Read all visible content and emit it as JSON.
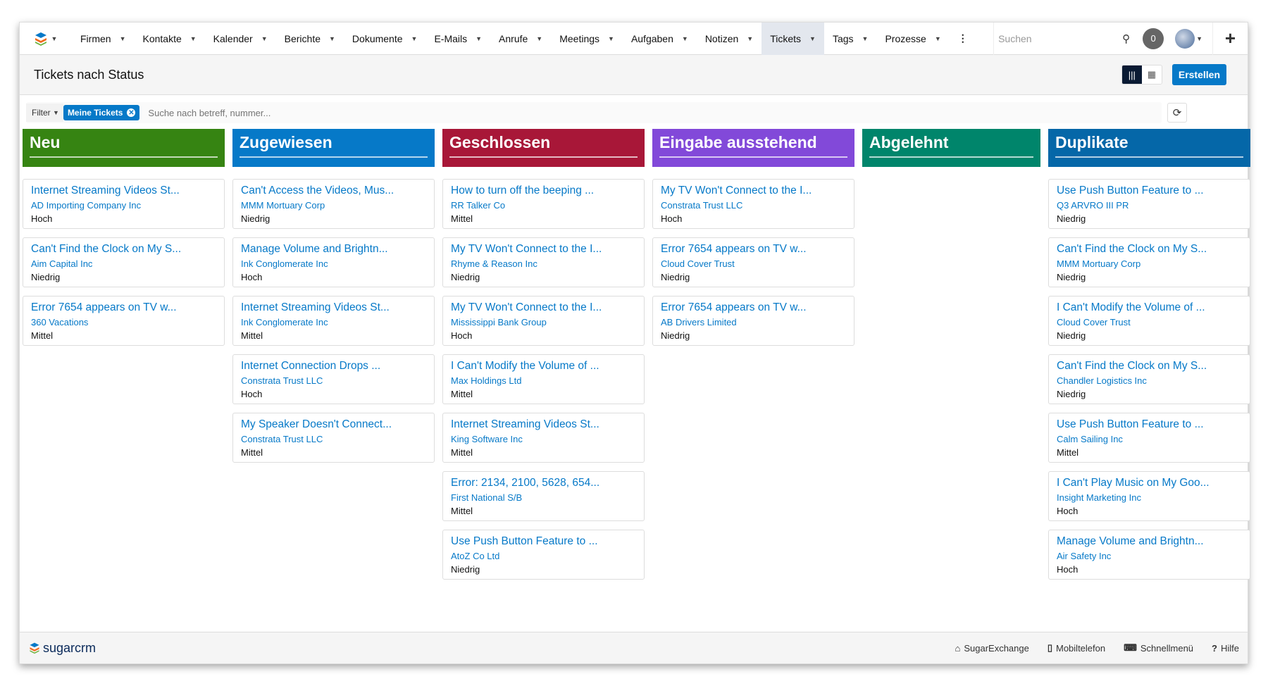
{
  "nav": {
    "items": [
      "Firmen",
      "Kontakte",
      "Kalender",
      "Berichte",
      "Dokumente",
      "E-Mails",
      "Anrufe",
      "Meetings",
      "Aufgaben",
      "Notizen",
      "Tickets",
      "Tags",
      "Prozesse"
    ],
    "active": "Tickets",
    "search_placeholder": "Suchen",
    "notifications": "0"
  },
  "header": {
    "title": "Tickets nach Status",
    "create_label": "Erstellen"
  },
  "filter": {
    "label": "Filter",
    "pill": "Meine Tickets",
    "placeholder": "Suche nach betreff, nummer..."
  },
  "columns": [
    {
      "title": "Neu",
      "color": "#368412",
      "cards": [
        {
          "t": "Internet Streaming Videos St...",
          "a": "AD Importing Company Inc",
          "p": "Hoch"
        },
        {
          "t": "Can't Find the Clock on My S...",
          "a": "Aim Capital Inc",
          "p": "Niedrig"
        },
        {
          "t": "Error 7654 appears on TV w...",
          "a": "360 Vacations",
          "p": "Mittel"
        }
      ]
    },
    {
      "title": "Zugewiesen",
      "color": "#0679c8",
      "cards": [
        {
          "t": "Can't Access the Videos, Mus...",
          "a": "MMM Mortuary Corp",
          "p": "Niedrig"
        },
        {
          "t": "Manage Volume and Brightn...",
          "a": "Ink Conglomerate Inc",
          "p": "Hoch"
        },
        {
          "t": "Internet Streaming Videos St...",
          "a": "Ink Conglomerate Inc",
          "p": "Mittel"
        },
        {
          "t": "Internet Connection Drops ...",
          "a": "Constrata Trust LLC",
          "p": "Hoch"
        },
        {
          "t": "My Speaker Doesn't Connect...",
          "a": "Constrata Trust LLC",
          "p": "Mittel"
        }
      ]
    },
    {
      "title": "Geschlossen",
      "color": "#a81738",
      "cards": [
        {
          "t": "How to turn off the beeping ...",
          "a": "RR Talker Co",
          "p": "Mittel"
        },
        {
          "t": "My TV Won't Connect to the I...",
          "a": "Rhyme & Reason Inc",
          "p": "Niedrig"
        },
        {
          "t": "My TV Won't Connect to the I...",
          "a": "Mississippi Bank Group",
          "p": "Hoch"
        },
        {
          "t": "I Can't Modify the Volume of ...",
          "a": "Max Holdings Ltd",
          "p": "Mittel"
        },
        {
          "t": "Internet Streaming Videos St...",
          "a": "King Software Inc",
          "p": "Mittel"
        },
        {
          "t": "Error: 2134, 2100, 5628, 654...",
          "a": "First National S/B",
          "p": "Mittel"
        },
        {
          "t": "Use Push Button Feature to ...",
          "a": "AtoZ Co Ltd",
          "p": "Niedrig"
        }
      ]
    },
    {
      "title": "Eingabe ausstehend",
      "color": "#8249d9",
      "cards": [
        {
          "t": "My TV Won't Connect to the I...",
          "a": "Constrata Trust LLC",
          "p": "Hoch"
        },
        {
          "t": "Error 7654 appears on TV w...",
          "a": "Cloud Cover Trust",
          "p": "Niedrig"
        },
        {
          "t": "Error 7654 appears on TV w...",
          "a": "AB Drivers Limited",
          "p": "Niedrig"
        }
      ]
    },
    {
      "title": "Abgelehnt",
      "color": "#00856b",
      "cards": []
    },
    {
      "title": "Duplikate",
      "color": "#0567a8",
      "cards": [
        {
          "t": "Use Push Button Feature to ...",
          "a": "Q3 ARVRO III PR",
          "p": "Niedrig"
        },
        {
          "t": "Can't Find the Clock on My S...",
          "a": "MMM Mortuary Corp",
          "p": "Niedrig"
        },
        {
          "t": "I Can't Modify the Volume of ...",
          "a": "Cloud Cover Trust",
          "p": "Niedrig"
        },
        {
          "t": "Can't Find the Clock on My S...",
          "a": "Chandler Logistics Inc",
          "p": "Niedrig"
        },
        {
          "t": "Use Push Button Feature to ...",
          "a": "Calm Sailing Inc",
          "p": "Mittel"
        },
        {
          "t": "I Can't Play Music on My Goo...",
          "a": "Insight Marketing Inc",
          "p": "Hoch"
        },
        {
          "t": "Manage Volume and Brightn...",
          "a": "Air Safety Inc",
          "p": "Hoch"
        }
      ]
    }
  ],
  "footer": {
    "logo": "sugarcrm",
    "links": [
      "SugarExchange",
      "Mobiltelefon",
      "Schnellmenü",
      "Hilfe"
    ]
  }
}
